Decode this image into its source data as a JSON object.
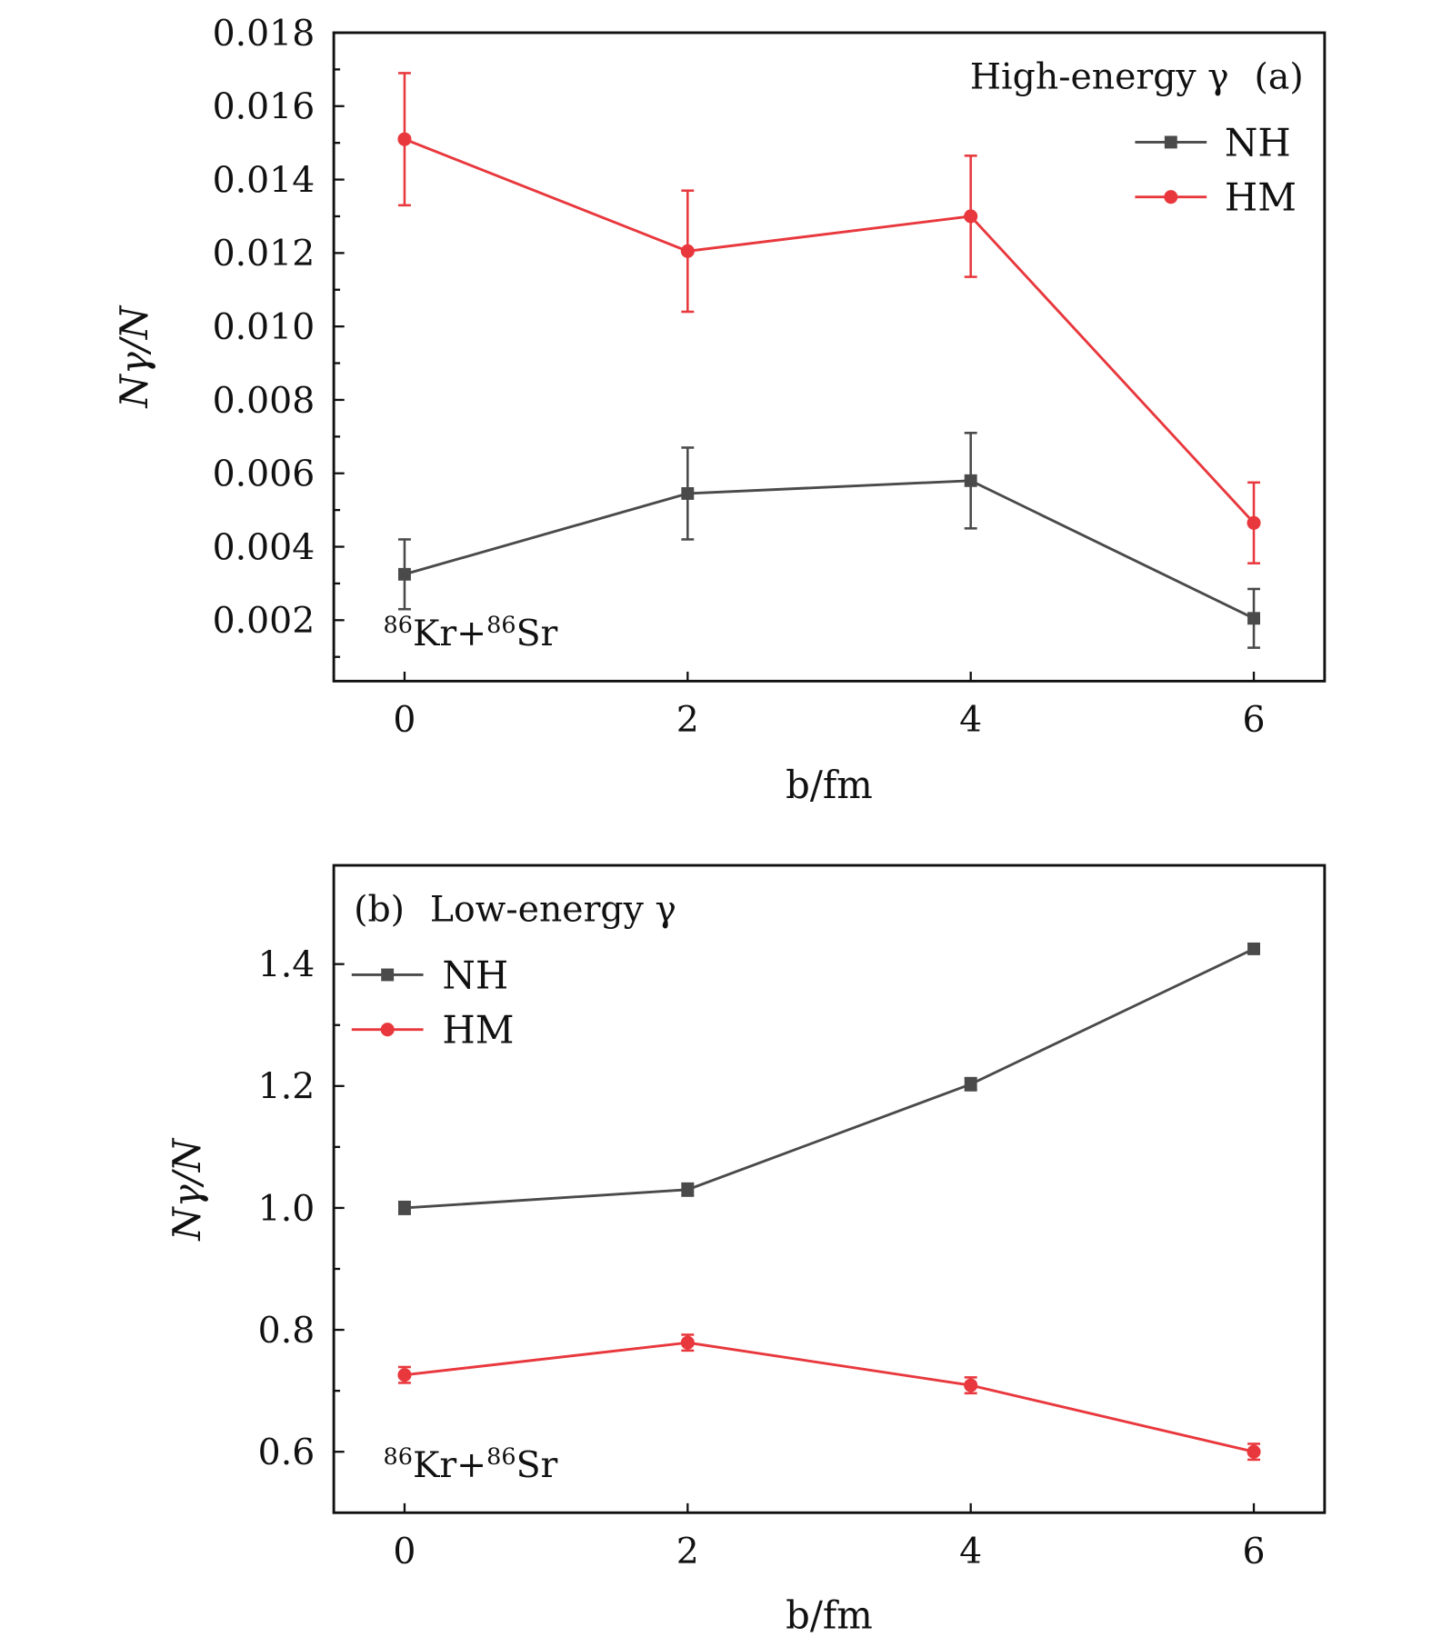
{
  "colors": {
    "NH": "#4a4a4a",
    "HM": "#e8383d",
    "axis": "#111111"
  },
  "chart_data": [
    {
      "type": "line",
      "panel_label": "(a)",
      "title": "High-energy γ",
      "annotation": {
        "sup1": "86",
        "el1": "Kr+",
        "sup2": "86",
        "el2": "Sr"
      },
      "xlabel": "b/fm",
      "ylabel": "Nγ/N",
      "x": [
        0,
        2,
        4,
        6
      ],
      "xlim": [
        -0.5,
        6.5
      ],
      "ylim": [
        0.00034,
        0.018
      ],
      "xticks": [
        "0",
        "2",
        "4",
        "6"
      ],
      "yticks": [
        "0.002",
        "0.004",
        "0.006",
        "0.008",
        "0.010",
        "0.012",
        "0.014",
        "0.016",
        "0.018"
      ],
      "legend": "top-right",
      "series": [
        {
          "name": "NH",
          "marker": "square",
          "values": [
            0.00325,
            0.00545,
            0.0058,
            0.00205
          ],
          "errors": [
            0.00095,
            0.00125,
            0.0013,
            0.0008
          ]
        },
        {
          "name": "HM",
          "marker": "circle",
          "values": [
            0.0151,
            0.01205,
            0.013,
            0.00465
          ],
          "errors": [
            0.0018,
            0.00165,
            0.00165,
            0.0011
          ]
        }
      ]
    },
    {
      "type": "line",
      "panel_label": "(b)",
      "title": "Low-energy γ",
      "annotation": {
        "sup1": "86",
        "el1": "Kr+",
        "sup2": "86",
        "el2": "Sr"
      },
      "xlabel": "b/fm",
      "ylabel": "Nγ/N",
      "x": [
        0,
        2,
        4,
        6
      ],
      "xlim": [
        -0.5,
        6.5
      ],
      "ylim": [
        0.5,
        1.562
      ],
      "xticks": [
        "0",
        "2",
        "4",
        "6"
      ],
      "yticks": [
        "0.6",
        "0.8",
        "1.0",
        "1.2",
        "1.4"
      ],
      "legend": "top-left",
      "series": [
        {
          "name": "NH",
          "marker": "square",
          "values": [
            1.0,
            1.03,
            1.203,
            1.425
          ],
          "errors": [
            0.01,
            0.01,
            0.01,
            0.008
          ]
        },
        {
          "name": "HM",
          "marker": "circle",
          "values": [
            0.726,
            0.779,
            0.709,
            0.6
          ],
          "errors": [
            0.013,
            0.013,
            0.013,
            0.013
          ]
        }
      ]
    }
  ]
}
